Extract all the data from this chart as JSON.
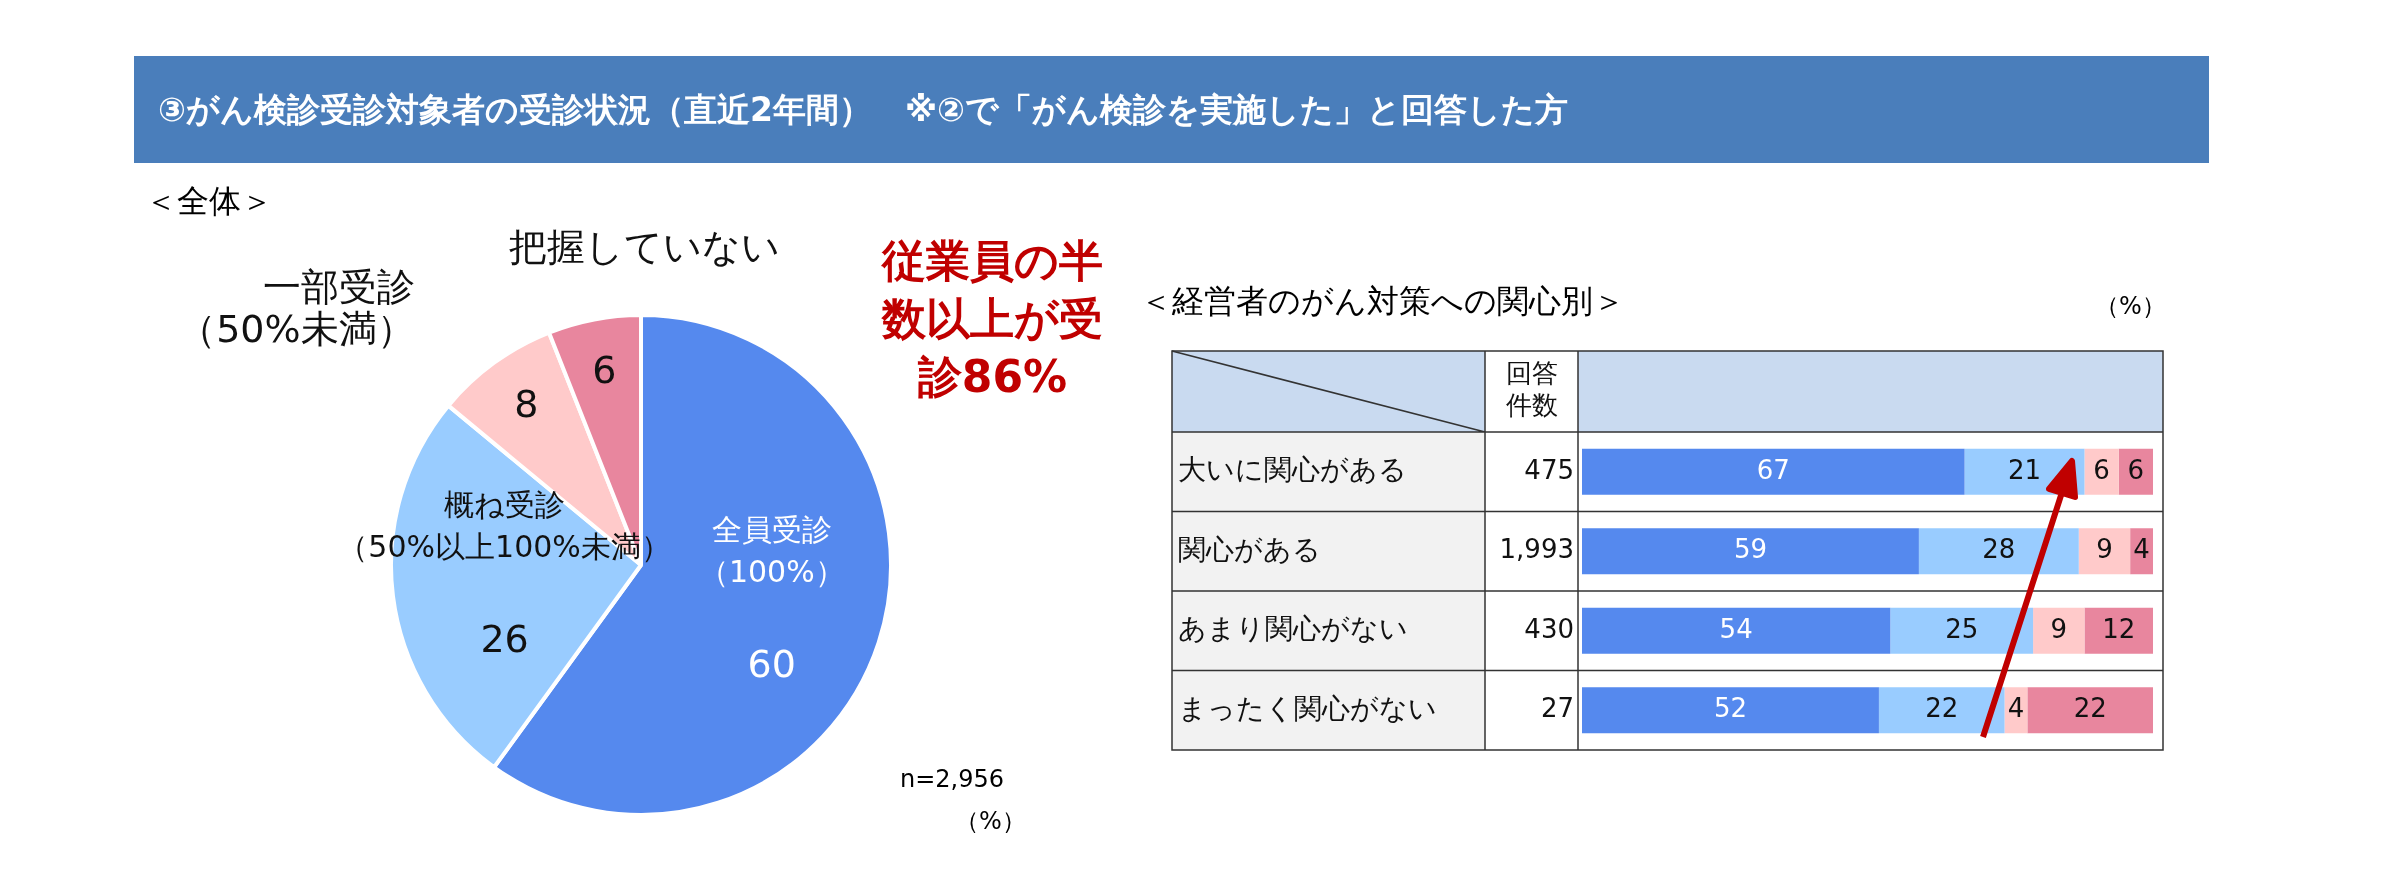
{
  "chart_data": [
    {
      "type": "pie",
      "title": "③がん検診受診対象者の受診状況（直近2年間）　※②で「がん検診を実施した」と回答した方",
      "subtitle": "＜全体＞",
      "categories": [
        "全員受診（100%）",
        "概ね受診（50%以上100%未満）",
        "一部受診（50%未満）",
        "把握していない"
      ],
      "values": [
        60,
        26,
        8,
        6
      ],
      "colors": [
        "#5589ee",
        "#99ccff",
        "#ffcaca",
        "#e8869e"
      ],
      "data_labels": true,
      "legend": false,
      "annotations": [
        "従業員の半数以上が受診86%",
        "n=2,956",
        "（%）"
      ]
    },
    {
      "type": "bar",
      "orientation": "horizontal",
      "stacked": true,
      "title": "＜経営者のがん対策への関心別＞",
      "categories": [
        "大いに関心がある",
        "関心がある",
        "あまり関心がない",
        "まったく関心がない"
      ],
      "series": [
        {
          "color": "#5589ee",
          "values": [
            67,
            59,
            54,
            52
          ]
        },
        {
          "color": "#99ccff",
          "values": [
            21,
            28,
            25,
            22
          ]
        },
        {
          "color": "#ffcaca",
          "values": [
            6,
            9,
            9,
            4
          ]
        },
        {
          "color": "#e8869e",
          "values": [
            6,
            4,
            12,
            22
          ]
        }
      ],
      "xlim": [
        0,
        100
      ],
      "tick_labels": "y",
      "data_labels": true,
      "legend": false,
      "annotations": [
        "回答件数",
        "475",
        "1,993",
        "430",
        "27",
        "（%）"
      ]
    }
  ]
}
